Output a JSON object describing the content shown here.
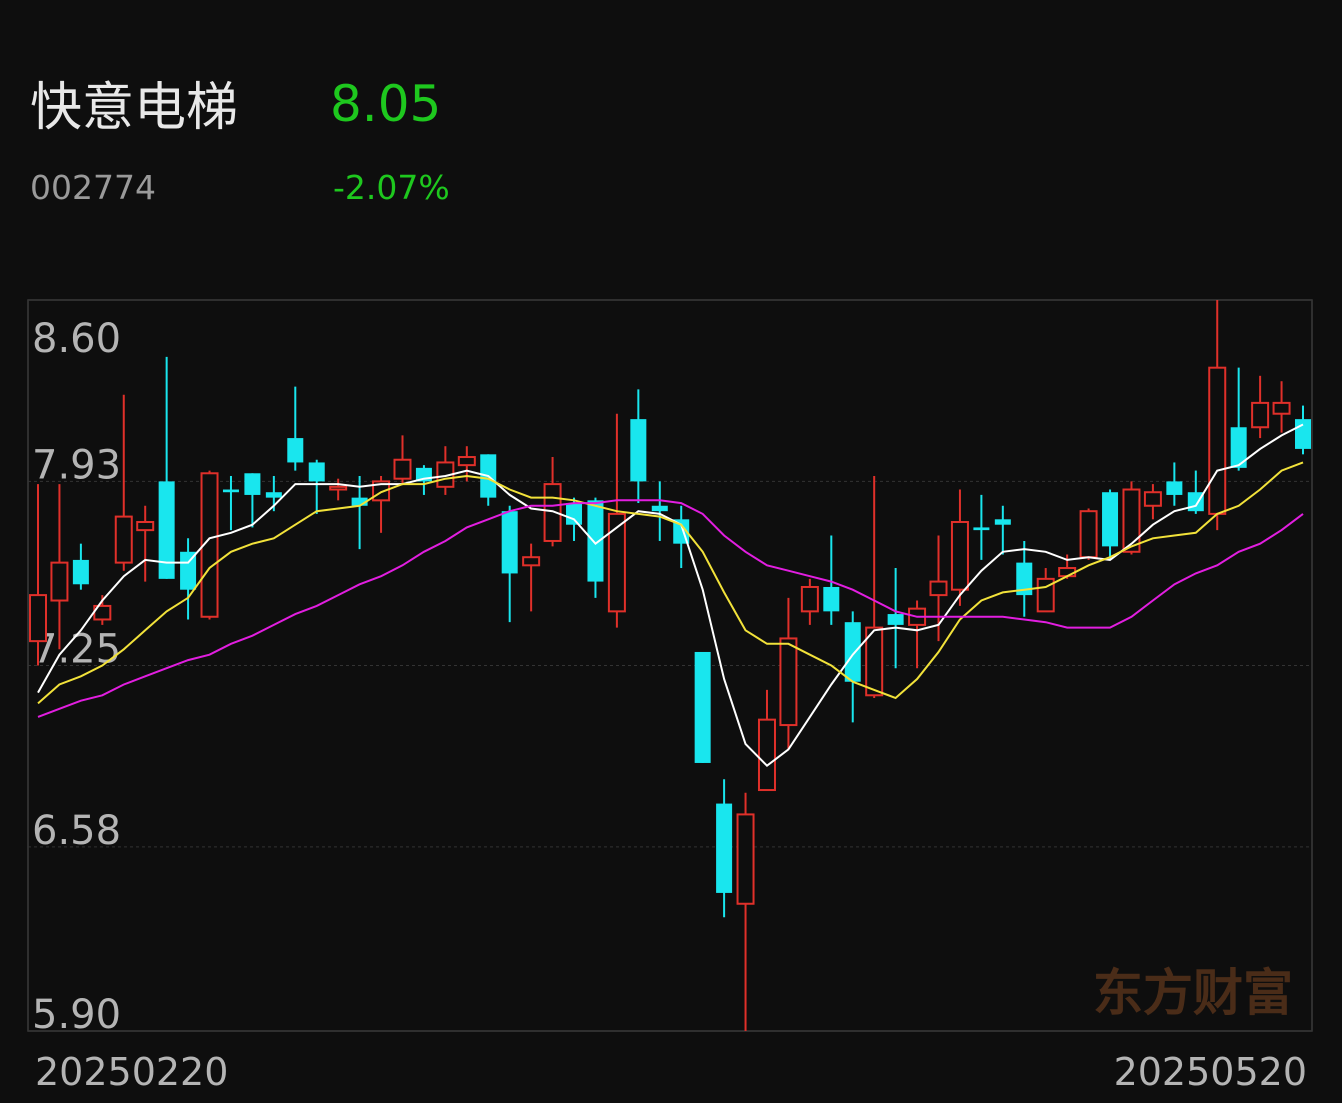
{
  "chart_data": {
    "type": "candlestick",
    "title": "快意电梯",
    "price": "8.05",
    "code": "002774",
    "change": "-2.07%",
    "watermark": "东方财富",
    "up_color": "#e0302a",
    "down_color": "#19e6ee",
    "text_color": "#b4b4b4",
    "accent_color": "#1ec81e",
    "ylim": [
      5.9,
      8.6
    ],
    "yticks": [
      {
        "value": 8.6,
        "label": "8.60"
      },
      7.93,
      7.25,
      6.58,
      {
        "value": 5.9,
        "label": "5.90"
      }
    ],
    "grid": true,
    "categories": [
      "20250220",
      null,
      null,
      null,
      null,
      null,
      null,
      null,
      null,
      null,
      null,
      null,
      null,
      null,
      null,
      null,
      null,
      null,
      null,
      null,
      null,
      null,
      null,
      null,
      null,
      null,
      null,
      null,
      null,
      null,
      null,
      null,
      null,
      null,
      null,
      null,
      null,
      null,
      null,
      null,
      null,
      null,
      null,
      null,
      null,
      null,
      null,
      null,
      null,
      null,
      null,
      null,
      null,
      null,
      null,
      null,
      null,
      null,
      null,
      "20250520"
    ],
    "open": [
      7.34,
      7.49,
      7.64,
      7.42,
      7.63,
      7.75,
      7.93,
      7.67,
      7.43,
      7.9,
      7.96,
      7.89,
      8.09,
      8.0,
      7.9,
      7.87,
      7.86,
      7.94,
      7.98,
      7.91,
      7.99,
      8.03,
      7.82,
      7.62,
      7.71,
      7.85,
      7.86,
      7.45,
      8.16,
      7.84,
      7.79,
      7.3,
      6.74,
      6.37,
      6.79,
      7.03,
      7.45,
      7.54,
      7.41,
      7.14,
      7.44,
      7.4,
      7.51,
      7.53,
      7.76,
      7.79,
      7.63,
      7.45,
      7.58,
      7.65,
      7.89,
      7.67,
      7.84,
      7.93,
      7.89,
      7.81,
      8.13,
      8.13,
      8.18,
      8.16
    ],
    "high": [
      7.92,
      7.92,
      7.7,
      7.51,
      8.25,
      7.84,
      8.39,
      7.72,
      7.97,
      7.95,
      7.96,
      7.95,
      8.28,
      8.01,
      7.94,
      7.95,
      7.95,
      8.1,
      7.99,
      8.06,
      8.06,
      8.03,
      7.84,
      7.7,
      8.02,
      7.87,
      7.87,
      8.18,
      8.27,
      7.93,
      7.84,
      7.3,
      6.83,
      6.78,
      7.16,
      7.5,
      7.57,
      7.73,
      7.45,
      7.95,
      7.61,
      7.49,
      7.73,
      7.9,
      7.88,
      7.84,
      7.71,
      7.61,
      7.66,
      7.83,
      7.9,
      7.93,
      7.92,
      8.0,
      7.97,
      8.6,
      8.35,
      8.32,
      8.3,
      8.21
    ],
    "low": [
      7.25,
      7.31,
      7.53,
      7.4,
      7.6,
      7.56,
      7.57,
      7.42,
      7.42,
      7.75,
      7.76,
      7.82,
      7.97,
      7.81,
      7.86,
      7.68,
      7.74,
      7.92,
      7.88,
      7.88,
      7.93,
      7.84,
      7.41,
      7.45,
      7.69,
      7.71,
      7.5,
      7.39,
      7.85,
      7.71,
      7.61,
      6.89,
      6.32,
      5.9,
      6.79,
      6.94,
      7.4,
      7.4,
      7.04,
      7.13,
      7.24,
      7.24,
      7.34,
      7.47,
      7.64,
      7.66,
      7.43,
      7.45,
      7.57,
      7.64,
      7.64,
      7.66,
      7.79,
      7.84,
      7.81,
      7.75,
      7.97,
      8.09,
      8.11,
      8.03
    ],
    "close": [
      7.51,
      7.63,
      7.55,
      7.47,
      7.8,
      7.78,
      7.57,
      7.53,
      7.96,
      7.89,
      7.88,
      7.87,
      8.0,
      7.93,
      7.91,
      7.84,
      7.93,
      8.01,
      7.93,
      8.0,
      8.02,
      7.87,
      7.59,
      7.65,
      7.92,
      7.77,
      7.56,
      7.81,
      7.93,
      7.82,
      7.7,
      6.89,
      6.41,
      6.7,
      7.05,
      7.35,
      7.54,
      7.45,
      7.19,
      7.39,
      7.4,
      7.46,
      7.56,
      7.78,
      7.75,
      7.77,
      7.51,
      7.57,
      7.61,
      7.82,
      7.69,
      7.9,
      7.89,
      7.88,
      7.82,
      8.35,
      7.98,
      8.22,
      8.22,
      8.05
    ],
    "lines": [
      {
        "color": "#ffffff",
        "values": [
          7.15,
          7.29,
          7.38,
          7.49,
          7.58,
          7.64,
          7.63,
          7.63,
          7.72,
          7.74,
          7.77,
          7.84,
          7.92,
          7.92,
          7.92,
          7.91,
          7.92,
          7.92,
          7.94,
          7.95,
          7.97,
          7.95,
          7.88,
          7.83,
          7.82,
          7.79,
          7.7,
          7.76,
          7.82,
          7.81,
          7.77,
          7.53,
          7.2,
          6.96,
          6.88,
          6.94,
          7.06,
          7.18,
          7.29,
          7.38,
          7.39,
          7.38,
          7.4,
          7.51,
          7.6,
          7.67,
          7.68,
          7.67,
          7.64,
          7.65,
          7.64,
          7.7,
          7.77,
          7.82,
          7.84,
          7.97,
          7.99,
          8.05,
          8.1,
          8.14
        ]
      },
      {
        "color": "#f2e23a",
        "values": [
          7.11,
          7.18,
          7.21,
          7.25,
          7.31,
          7.38,
          7.45,
          7.5,
          7.61,
          7.67,
          7.7,
          7.72,
          7.77,
          7.82,
          7.83,
          7.84,
          7.89,
          7.92,
          7.92,
          7.94,
          7.95,
          7.94,
          7.9,
          7.87,
          7.87,
          7.86,
          7.84,
          7.82,
          7.81,
          7.8,
          7.77,
          7.67,
          7.52,
          7.38,
          7.33,
          7.33,
          7.29,
          7.25,
          7.19,
          7.16,
          7.13,
          7.2,
          7.3,
          7.42,
          7.49,
          7.52,
          7.53,
          7.54,
          7.58,
          7.62,
          7.65,
          7.69,
          7.72,
          7.73,
          7.74,
          7.81,
          7.84,
          7.9,
          7.97,
          8.0
        ]
      },
      {
        "color": "#e21ee0",
        "values": [
          7.06,
          7.09,
          7.12,
          7.14,
          7.18,
          7.21,
          7.24,
          7.27,
          7.29,
          7.33,
          7.36,
          7.4,
          7.44,
          7.47,
          7.51,
          7.55,
          7.58,
          7.62,
          7.67,
          7.71,
          7.76,
          7.79,
          7.82,
          7.84,
          7.84,
          7.85,
          7.85,
          7.86,
          7.86,
          7.86,
          7.85,
          7.81,
          7.73,
          7.67,
          7.62,
          7.6,
          7.58,
          7.56,
          7.53,
          7.49,
          7.45,
          7.43,
          7.43,
          7.43,
          7.43,
          7.43,
          7.42,
          7.41,
          7.39,
          7.39,
          7.39,
          7.43,
          7.49,
          7.55,
          7.59,
          7.62,
          7.67,
          7.7,
          7.75,
          7.81
        ]
      }
    ]
  }
}
